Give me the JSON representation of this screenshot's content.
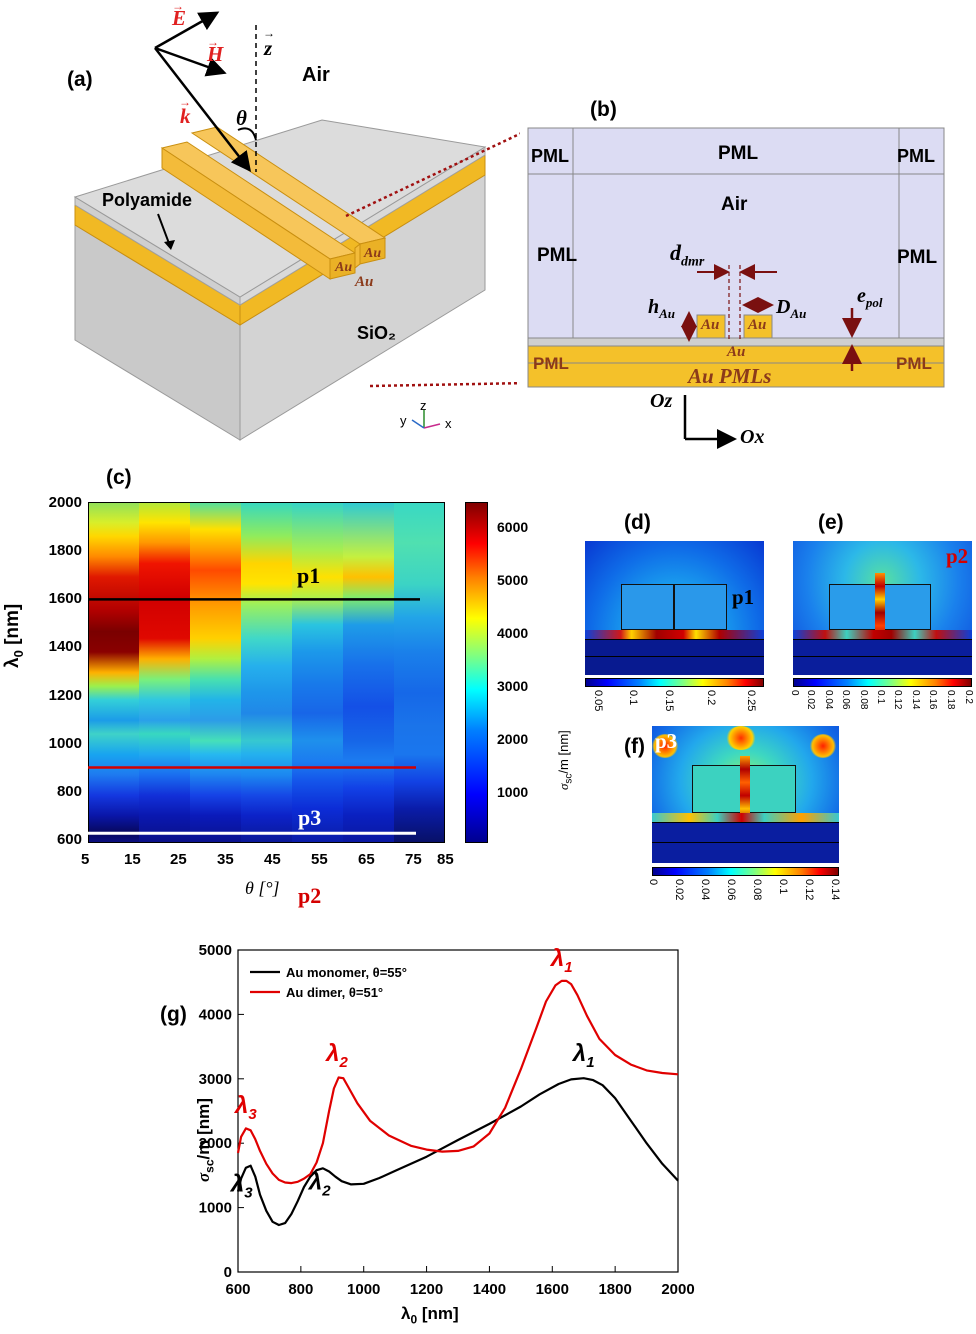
{
  "panel_labels": {
    "a": "(a)",
    "b": "(b)",
    "c": "(c)",
    "d": "(d)",
    "e": "(e)",
    "f": "(f)",
    "g": "(g)"
  },
  "panel_a": {
    "vector_E": "E",
    "vector_H": "H",
    "vector_k": "k",
    "axis_z": "z",
    "angle": "θ",
    "air": "Air",
    "polyamide": "Polyamide",
    "substrate": "SiO₂",
    "au_rod_1": "Au",
    "au_rod_2": "Au",
    "au_film": "Au",
    "triad": {
      "y": "y",
      "z": "z",
      "x": "x"
    }
  },
  "panel_b": {
    "pml_top_left": "PML",
    "pml_top": "PML",
    "pml_top_right": "PML",
    "air": "Air",
    "pml_left": "PML",
    "pml_right": "PML",
    "d_dmr": "d",
    "d_dmr_sub": "dmr",
    "h_au": "h",
    "h_au_sub": "Au",
    "d_au": "D",
    "d_au_sub": "Au",
    "e_pol": "e",
    "e_pol_sub": "pol",
    "rod_1": "Au",
    "rod_2": "Au",
    "film": "Au",
    "film_pml_left": "PML",
    "film_pml_right": "PML",
    "film_pmls": "Au PMLs",
    "axis_oz": "Oz",
    "axis_ox": "Ox"
  },
  "panel_c": {
    "ylabel": "λ",
    "ylabel_sub": "0",
    "ylabel_unit": " [nm]",
    "xlabel": "θ [°]",
    "yticks": [
      "2000",
      "1800",
      "1600",
      "1400",
      "1200",
      "1000",
      "800",
      "600"
    ],
    "xticks": [
      "5",
      "15",
      "25",
      "35",
      "45",
      "55",
      "65",
      "75",
      "85"
    ],
    "colorbar_label": "σ",
    "colorbar_label_sub": "sc",
    "colorbar_label_unit": "/m [nm]",
    "colorbar_ticks": [
      "6000",
      "5000",
      "4000",
      "3000",
      "2000",
      "1000"
    ],
    "lines": [
      {
        "label": "p1",
        "lambda_nm": 1600,
        "color": "#000000"
      },
      {
        "label": "p2",
        "lambda_nm": 910,
        "color": "#d40000"
      },
      {
        "label": "p3",
        "lambda_nm": 640,
        "color": "#ffffff"
      }
    ]
  },
  "panel_d": {
    "marker": "p1",
    "colorbar_ticks": [
      "0.05",
      "0.1",
      "0.15",
      "0.2",
      "0.25"
    ]
  },
  "panel_e": {
    "marker": "p2",
    "colorbar_ticks": [
      "0",
      "0.02",
      "0.04",
      "0.06",
      "0.08",
      "0.1",
      "0.12",
      "0.14",
      "0.16",
      "0.18",
      "0.2"
    ]
  },
  "panel_f": {
    "marker": "p3",
    "colorbar_ticks": [
      "0",
      "0.02",
      "0.04",
      "0.06",
      "0.08",
      "0.1",
      "0.12",
      "0.14"
    ]
  },
  "chart_data": {
    "type": "line",
    "xlabel": "λ",
    "xlabel_sub": "0",
    "xlabel_unit": " [nm]",
    "ylabel": "σ",
    "ylabel_sub": "sc",
    "ylabel_unit": "/m [nm]",
    "xlim": [
      600,
      2000
    ],
    "ylim": [
      0,
      5000
    ],
    "xticks": [
      600,
      800,
      1000,
      1200,
      1400,
      1600,
      1800,
      2000
    ],
    "yticks": [
      0,
      1000,
      2000,
      3000,
      4000,
      5000
    ],
    "legend_position": "top-left",
    "series": [
      {
        "name": "Au monomer, θ=55°",
        "color": "#000000",
        "x": [
          600,
          610,
          625,
          640,
          655,
          670,
          690,
          710,
          730,
          750,
          770,
          790,
          810,
          830,
          850,
          870,
          890,
          910,
          930,
          960,
          1000,
          1050,
          1100,
          1200,
          1300,
          1400,
          1500,
          1560,
          1620,
          1660,
          1700,
          1730,
          1760,
          1800,
          1850,
          1900,
          1950,
          2000
        ],
        "y": [
          1250,
          1450,
          1620,
          1650,
          1480,
          1200,
          950,
          780,
          730,
          760,
          900,
          1100,
          1320,
          1480,
          1580,
          1610,
          1560,
          1480,
          1410,
          1360,
          1370,
          1460,
          1570,
          1790,
          2050,
          2300,
          2570,
          2760,
          2920,
          2990,
          3010,
          2980,
          2900,
          2700,
          2350,
          2000,
          1680,
          1420
        ]
      },
      {
        "name": "Au dimer, θ=51°",
        "color": "#e00000",
        "x": [
          600,
          610,
          625,
          640,
          655,
          670,
          690,
          710,
          730,
          750,
          770,
          790,
          810,
          830,
          850,
          870,
          890,
          905,
          920,
          935,
          950,
          980,
          1020,
          1080,
          1150,
          1200,
          1250,
          1300,
          1350,
          1400,
          1450,
          1500,
          1550,
          1580,
          1610,
          1630,
          1645,
          1660,
          1680,
          1710,
          1750,
          1800,
          1850,
          1900,
          1950,
          2000
        ],
        "y": [
          1850,
          2100,
          2230,
          2200,
          2060,
          1880,
          1680,
          1530,
          1430,
          1390,
          1380,
          1400,
          1450,
          1520,
          1700,
          2000,
          2500,
          2850,
          3020,
          3010,
          2880,
          2620,
          2350,
          2120,
          1960,
          1900,
          1870,
          1880,
          1950,
          2150,
          2550,
          3150,
          3800,
          4200,
          4450,
          4520,
          4520,
          4470,
          4300,
          3980,
          3620,
          3370,
          3220,
          3130,
          3090,
          3070
        ]
      }
    ],
    "annotations": [
      {
        "text": "λ",
        "sub": "1",
        "x": 1630,
        "y": 4750,
        "color": "#e00000"
      },
      {
        "text": "λ",
        "sub": "2",
        "x": 915,
        "y": 3280,
        "color": "#e00000"
      },
      {
        "text": "λ",
        "sub": "3",
        "x": 625,
        "y": 2470,
        "color": "#e00000"
      },
      {
        "text": "λ",
        "sub": "1",
        "x": 1700,
        "y": 3280,
        "color": "#000000"
      },
      {
        "text": "λ",
        "sub": "2",
        "x": 860,
        "y": 1280,
        "color": "#000000"
      },
      {
        "text": "λ",
        "sub": "3",
        "x": 612,
        "y": 1250,
        "color": "#000000"
      }
    ]
  }
}
